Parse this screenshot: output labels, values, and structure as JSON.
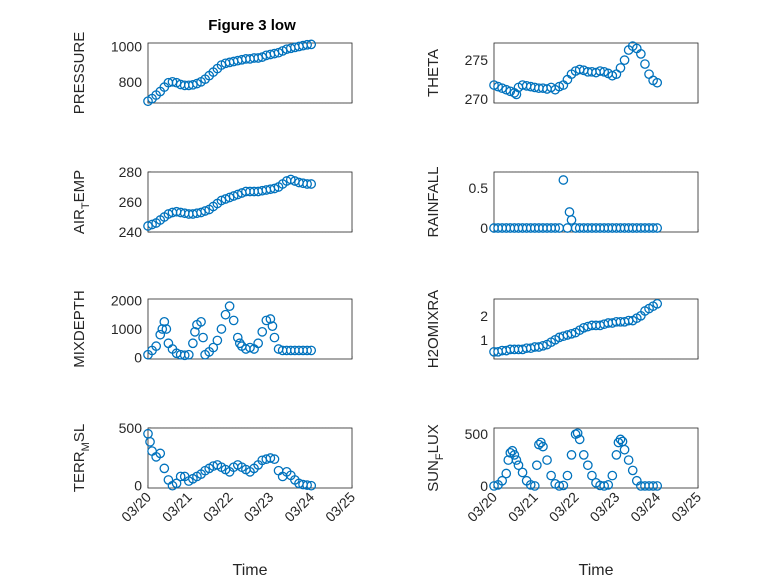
{
  "figure": {
    "title": "Figure 3 low",
    "colors": {
      "marker": "#0072bd",
      "axes": "#262626",
      "grid": "#d4d4d4"
    }
  },
  "chart_data": [
    {
      "type": "scatter",
      "title": "Figure 3 low",
      "ylabel": "PRESSURE",
      "ylabel_sub": "",
      "ylim": [
        680,
        1020
      ],
      "yticks": [
        800,
        1000
      ],
      "ytick_labels": [
        "800",
        "1000"
      ],
      "xlim": [
        0,
        5
      ],
      "xticks": [
        0,
        1,
        2,
        3,
        4,
        5
      ],
      "xtick_labels": [],
      "x": [
        0,
        0.1,
        0.2,
        0.3,
        0.4,
        0.5,
        0.6,
        0.7,
        0.8,
        0.9,
        1.0,
        1.1,
        1.2,
        1.3,
        1.4,
        1.5,
        1.6,
        1.7,
        1.8,
        1.9,
        2.0,
        2.1,
        2.2,
        2.3,
        2.4,
        2.5,
        2.6,
        2.7,
        2.8,
        2.9,
        3.0,
        3.1,
        3.2,
        3.3,
        3.4,
        3.5,
        3.6,
        3.7,
        3.8,
        3.9,
        4.0
      ],
      "y": [
        690,
        705,
        725,
        745,
        770,
        795,
        800,
        795,
        785,
        780,
        780,
        783,
        790,
        800,
        815,
        835,
        855,
        875,
        895,
        905,
        910,
        915,
        920,
        925,
        930,
        930,
        935,
        935,
        940,
        950,
        955,
        960,
        965,
        975,
        985,
        990,
        995,
        1000,
        1005,
        1010,
        1012
      ]
    },
    {
      "type": "scatter",
      "title": "",
      "ylabel": "THETA",
      "ylabel_sub": "",
      "ylim": [
        269.5,
        277.2
      ],
      "yticks": [
        270,
        275
      ],
      "ytick_labels": [
        "270",
        "275"
      ],
      "xlim": [
        0,
        5
      ],
      "xticks": [
        0,
        1,
        2,
        3,
        4,
        5
      ],
      "xtick_labels": [],
      "x": [
        0,
        0.1,
        0.2,
        0.3,
        0.4,
        0.5,
        0.55,
        0.6,
        0.7,
        0.8,
        0.9,
        1.0,
        1.1,
        1.2,
        1.3,
        1.4,
        1.5,
        1.6,
        1.7,
        1.8,
        1.9,
        2.0,
        2.1,
        2.2,
        2.3,
        2.4,
        2.5,
        2.6,
        2.7,
        2.8,
        2.9,
        3.0,
        3.1,
        3.2,
        3.3,
        3.4,
        3.5,
        3.6,
        3.7,
        3.8,
        3.9,
        4.0
      ],
      "y": [
        271.8,
        271.6,
        271.4,
        271.2,
        271.0,
        270.8,
        270.6,
        271.5,
        271.8,
        271.7,
        271.6,
        271.5,
        271.4,
        271.4,
        271.3,
        271.5,
        271.2,
        271.6,
        271.8,
        272.5,
        273.2,
        273.6,
        273.8,
        273.7,
        273.5,
        273.5,
        273.4,
        273.6,
        273.5,
        273.3,
        273.0,
        273.2,
        274.0,
        275.0,
        276.3,
        276.8,
        276.5,
        275.8,
        274.5,
        273.2,
        272.4,
        272.1
      ]
    },
    {
      "type": "scatter",
      "title": "",
      "ylabel": "AIR",
      "ylabel_sub": "T",
      "ylabel_rest": "EMP",
      "ylim": [
        240,
        280
      ],
      "yticks": [
        240,
        260,
        280
      ],
      "ytick_labels": [
        "240",
        "260",
        "280"
      ],
      "xlim": [
        0,
        5
      ],
      "xticks": [
        0,
        1,
        2,
        3,
        4,
        5
      ],
      "xtick_labels": [],
      "x": [
        0,
        0.1,
        0.2,
        0.3,
        0.4,
        0.5,
        0.6,
        0.7,
        0.8,
        0.9,
        1.0,
        1.1,
        1.2,
        1.3,
        1.4,
        1.5,
        1.6,
        1.7,
        1.8,
        1.9,
        2.0,
        2.1,
        2.2,
        2.3,
        2.4,
        2.5,
        2.6,
        2.7,
        2.8,
        2.9,
        3.0,
        3.1,
        3.2,
        3.3,
        3.4,
        3.5,
        3.6,
        3.7,
        3.8,
        3.9,
        4.0
      ],
      "y": [
        244,
        245,
        246,
        248,
        250,
        252,
        253,
        253.5,
        253,
        252.5,
        252,
        252,
        252.5,
        253,
        254,
        255,
        257,
        259,
        261,
        262,
        263,
        264,
        265,
        266,
        267,
        267,
        267,
        267,
        267.5,
        268,
        268.5,
        269,
        270,
        272,
        274,
        275,
        274,
        273,
        272.5,
        272,
        272
      ]
    },
    {
      "type": "scatter",
      "title": "",
      "ylabel": "RAINFALL",
      "ylabel_sub": "",
      "ylim": [
        -0.05,
        0.7
      ],
      "yticks": [
        0,
        0.5
      ],
      "ytick_labels": [
        "0",
        "0.5"
      ],
      "xlim": [
        0,
        5
      ],
      "xticks": [
        0,
        1,
        2,
        3,
        4,
        5
      ],
      "xtick_labels": [],
      "x": [
        0,
        0.1,
        0.2,
        0.3,
        0.4,
        0.5,
        0.6,
        0.7,
        0.8,
        0.9,
        1.0,
        1.1,
        1.2,
        1.3,
        1.4,
        1.5,
        1.6,
        1.7,
        1.8,
        1.85,
        1.9,
        2.0,
        2.1,
        2.2,
        2.3,
        2.4,
        2.5,
        2.6,
        2.7,
        2.8,
        2.9,
        3.0,
        3.1,
        3.2,
        3.3,
        3.4,
        3.5,
        3.6,
        3.7,
        3.8,
        3.9,
        4.0
      ],
      "y": [
        0,
        0,
        0,
        0,
        0,
        0,
        0,
        0,
        0,
        0,
        0,
        0,
        0,
        0,
        0,
        0,
        0,
        0.6,
        0,
        0.2,
        0.1,
        0,
        0,
        0,
        0,
        0,
        0,
        0,
        0,
        0,
        0,
        0,
        0,
        0,
        0,
        0,
        0,
        0,
        0,
        0,
        0,
        0
      ]
    },
    {
      "type": "scatter",
      "title": "",
      "ylabel": "MIXDEPTH",
      "ylabel_sub": "",
      "ylim": [
        -50,
        2050
      ],
      "yticks": [
        0,
        1000,
        2000
      ],
      "ytick_labels": [
        "0",
        "1000",
        "2000"
      ],
      "xlim": [
        0,
        5
      ],
      "xticks": [
        0,
        1,
        2,
        3,
        4,
        5
      ],
      "xtick_labels": [],
      "x": [
        0,
        0.1,
        0.2,
        0.3,
        0.35,
        0.4,
        0.45,
        0.5,
        0.6,
        0.7,
        0.8,
        0.9,
        1.0,
        1.1,
        1.15,
        1.2,
        1.3,
        1.35,
        1.4,
        1.5,
        1.6,
        1.7,
        1.8,
        1.9,
        2.0,
        2.1,
        2.2,
        2.25,
        2.3,
        2.4,
        2.5,
        2.6,
        2.7,
        2.8,
        2.9,
        3.0,
        3.05,
        3.1,
        3.2,
        3.3,
        3.4,
        3.5,
        3.6,
        3.7,
        3.8,
        3.9,
        4.0
      ],
      "y": [
        100,
        250,
        400,
        800,
        1000,
        1250,
        1000,
        500,
        300,
        150,
        100,
        80,
        100,
        500,
        900,
        1150,
        1250,
        700,
        100,
        200,
        350,
        600,
        1000,
        1500,
        1800,
        1300,
        700,
        500,
        400,
        300,
        350,
        300,
        500,
        900,
        1300,
        1350,
        1100,
        700,
        300,
        250,
        250,
        250,
        250,
        250,
        250,
        250,
        250
      ]
    },
    {
      "type": "scatter",
      "title": "",
      "ylabel": "H2OMIXRA",
      "ylabel_sub": "",
      "ylim": [
        0.2,
        2.7
      ],
      "yticks": [
        1,
        2
      ],
      "ytick_labels": [
        "1",
        "2"
      ],
      "xlim": [
        0,
        5
      ],
      "xticks": [
        0,
        1,
        2,
        3,
        4,
        5
      ],
      "xtick_labels": [],
      "x": [
        0,
        0.1,
        0.2,
        0.3,
        0.4,
        0.5,
        0.6,
        0.7,
        0.8,
        0.9,
        1.0,
        1.1,
        1.2,
        1.3,
        1.4,
        1.5,
        1.6,
        1.7,
        1.8,
        1.9,
        2.0,
        2.1,
        2.2,
        2.3,
        2.4,
        2.5,
        2.6,
        2.7,
        2.8,
        2.9,
        3.0,
        3.1,
        3.2,
        3.3,
        3.4,
        3.5,
        3.6,
        3.7,
        3.8,
        3.9,
        4.0
      ],
      "y": [
        0.5,
        0.5,
        0.55,
        0.55,
        0.6,
        0.6,
        0.6,
        0.6,
        0.65,
        0.65,
        0.7,
        0.7,
        0.75,
        0.8,
        0.9,
        1.0,
        1.1,
        1.15,
        1.2,
        1.25,
        1.3,
        1.4,
        1.5,
        1.55,
        1.6,
        1.6,
        1.6,
        1.65,
        1.7,
        1.7,
        1.75,
        1.75,
        1.75,
        1.8,
        1.8,
        1.9,
        2.0,
        2.2,
        2.3,
        2.4,
        2.5
      ]
    },
    {
      "type": "scatter",
      "title": "",
      "ylabel": "TERR",
      "ylabel_sub": "M",
      "ylabel_rest": "SL",
      "ylim": [
        -20,
        500
      ],
      "yticks": [
        0,
        500
      ],
      "ytick_labels": [
        "0",
        "500"
      ],
      "xlim": [
        0,
        5
      ],
      "xticks": [
        0,
        1,
        2,
        3,
        4,
        5
      ],
      "xtick_labels": [
        "03/20",
        "03/21",
        "03/22",
        "03/23",
        "03/24",
        "03/25"
      ],
      "xlabel": "Time",
      "x": [
        0,
        0.05,
        0.1,
        0.2,
        0.3,
        0.4,
        0.5,
        0.6,
        0.7,
        0.8,
        0.9,
        1.0,
        1.1,
        1.2,
        1.3,
        1.4,
        1.5,
        1.6,
        1.7,
        1.8,
        1.9,
        2.0,
        2.1,
        2.2,
        2.3,
        2.4,
        2.5,
        2.6,
        2.7,
        2.8,
        2.9,
        3.0,
        3.1,
        3.2,
        3.3,
        3.4,
        3.5,
        3.6,
        3.7,
        3.8,
        3.9,
        4.0
      ],
      "y": [
        450,
        380,
        300,
        250,
        280,
        150,
        50,
        0,
        20,
        80,
        80,
        40,
        60,
        80,
        100,
        130,
        150,
        170,
        180,
        160,
        140,
        120,
        160,
        180,
        160,
        140,
        120,
        150,
        180,
        220,
        230,
        240,
        230,
        130,
        80,
        120,
        90,
        50,
        20,
        10,
        5,
        0
      ]
    },
    {
      "type": "scatter",
      "title": "",
      "ylabel": "SUN",
      "ylabel_sub": "F",
      "ylabel_rest": "LUX",
      "ylim": [
        -20,
        560
      ],
      "yticks": [
        0,
        500
      ],
      "ytick_labels": [
        "0",
        "500"
      ],
      "xlim": [
        0,
        5
      ],
      "xticks": [
        0,
        1,
        2,
        3,
        4,
        5
      ],
      "xtick_labels": [
        "03/20",
        "03/21",
        "03/22",
        "03/23",
        "03/24",
        "03/25"
      ],
      "xlabel": "Time",
      "x": [
        0,
        0.1,
        0.2,
        0.3,
        0.35,
        0.4,
        0.45,
        0.5,
        0.55,
        0.6,
        0.7,
        0.8,
        0.9,
        1.0,
        1.05,
        1.1,
        1.15,
        1.2,
        1.3,
        1.4,
        1.5,
        1.6,
        1.7,
        1.8,
        1.9,
        2.0,
        2.05,
        2.1,
        2.2,
        2.3,
        2.4,
        2.5,
        2.6,
        2.7,
        2.8,
        2.9,
        3.0,
        3.05,
        3.1,
        3.15,
        3.2,
        3.3,
        3.4,
        3.5,
        3.6,
        3.7,
        3.8,
        3.9,
        4.0
      ],
      "y": [
        0,
        10,
        50,
        120,
        250,
        320,
        340,
        300,
        250,
        200,
        130,
        50,
        10,
        0,
        200,
        400,
        420,
        380,
        250,
        100,
        20,
        0,
        5,
        100,
        300,
        500,
        510,
        450,
        300,
        200,
        100,
        30,
        5,
        0,
        10,
        100,
        300,
        420,
        450,
        430,
        350,
        250,
        150,
        50,
        0,
        0,
        0,
        0,
        0
      ]
    }
  ]
}
